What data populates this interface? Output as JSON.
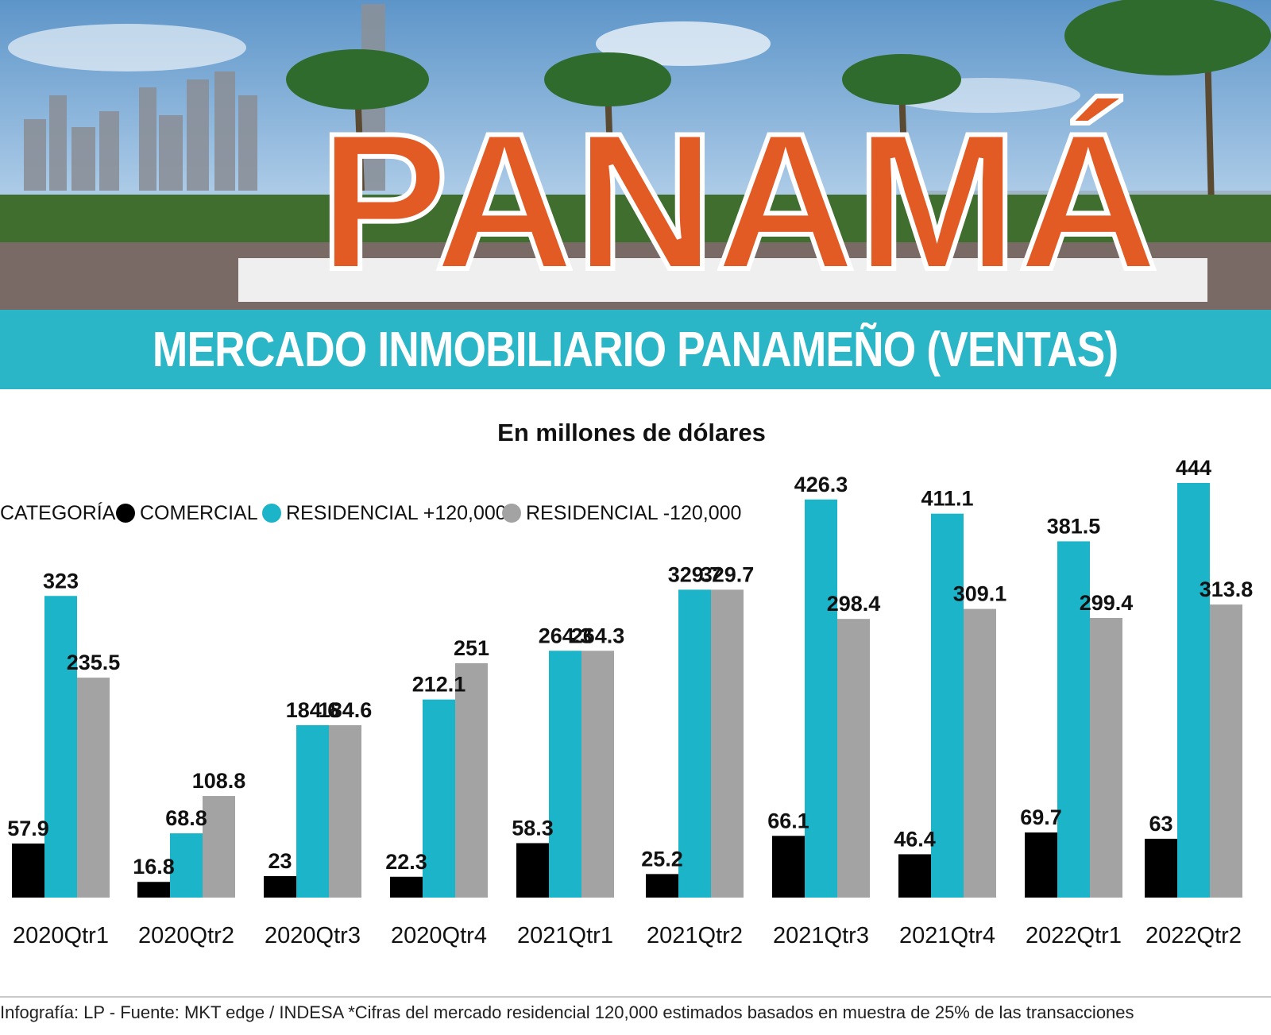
{
  "header": {
    "sign_text": "PANAMÁ",
    "title": "MERCADO INMOBILIARIO PANAMEÑO (VENTAS)"
  },
  "colors": {
    "band": "#2bb6c7",
    "comercial": "#000000",
    "residencial_plus": "#1bb4c8",
    "residencial_minus": "#a3a3a3"
  },
  "chart_data": {
    "type": "bar",
    "title": "En millones de dólares",
    "legend_label": "CATEGORÍA",
    "legend_position": "top-left",
    "categories": [
      "2020Qtr1",
      "2020Qtr2",
      "2020Qtr3",
      "2020Qtr4",
      "2021Qtr1",
      "2021Qtr2",
      "2021Qtr3",
      "2021Qtr4",
      "2022Qtr1",
      "2022Qtr2"
    ],
    "series": [
      {
        "name": "COMERCIAL",
        "color": "#000000",
        "values": [
          57.9,
          16.8,
          23,
          22.3,
          58.3,
          25.2,
          66.1,
          46.4,
          69.7,
          63
        ]
      },
      {
        "name": "RESIDENCIAL +120,000",
        "color": "#1bb4c8",
        "values": [
          323,
          68.8,
          184.6,
          212.1,
          264.3,
          329.7,
          426.3,
          411.1,
          381.5,
          444
        ]
      },
      {
        "name": "RESIDENCIAL -120,000",
        "color": "#a3a3a3",
        "values": [
          235.5,
          108.8,
          184.6,
          251,
          264.3,
          329.7,
          298.4,
          309.1,
          299.4,
          313.8
        ]
      }
    ],
    "labels": [
      [
        "57.9",
        "16.8",
        "23",
        "22.3",
        "58.3",
        "25.2",
        "66.1",
        "46.4",
        "69.7",
        "63"
      ],
      [
        "323",
        "68.8",
        "184.6",
        "212.1",
        "264.3",
        "329.7",
        "426.3",
        "411.1",
        "381.5",
        "444"
      ],
      [
        "235.5",
        "108.8",
        "184.6",
        "251",
        "264.3",
        "329.7",
        "298.4",
        "309.1",
        "299.4",
        "313.8"
      ]
    ],
    "ylim": [
      0,
      444
    ],
    "grid": false
  },
  "footer": {
    "text": "Infografía: LP - Fuente: MKT edge / INDESA *Cifras del mercado residencial 120,000 estimados basados en muestra de 25% de las transacciones"
  }
}
